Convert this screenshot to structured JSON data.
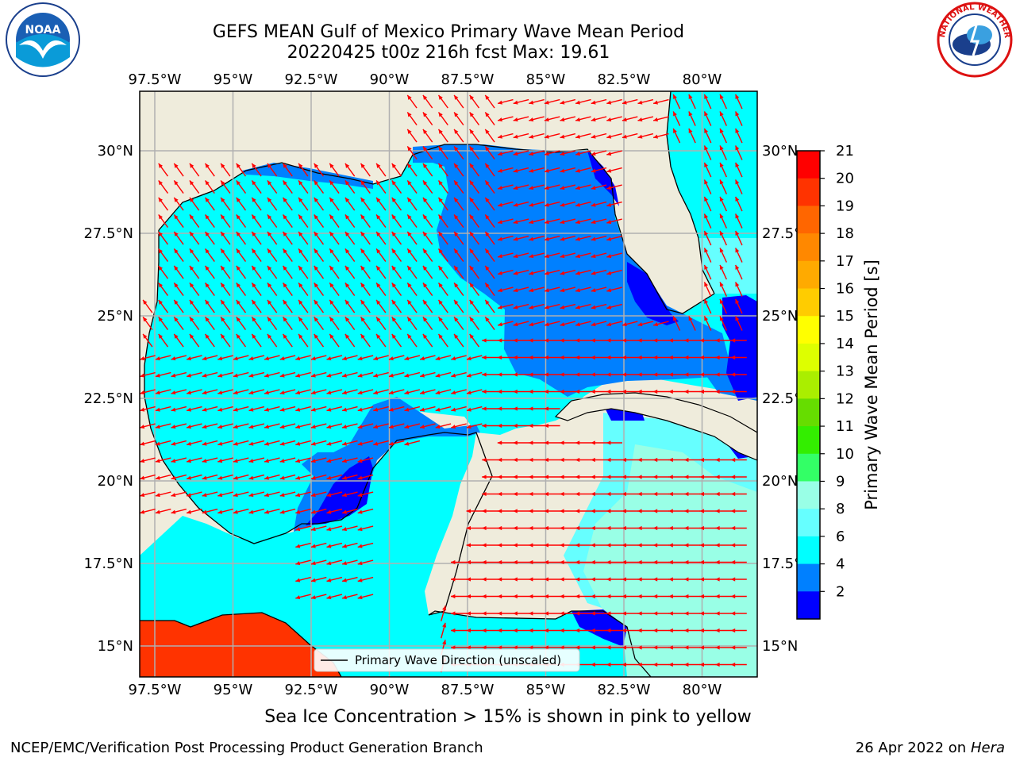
{
  "title_line1": "GEFS MEAN Gulf of Mexico Primary Wave Mean Period",
  "title_line2": "20220425 t00z 216h fcst   Max: 19.61",
  "longitude_ticks": [
    "97.5°W",
    "95°W",
    "92.5°W",
    "90°W",
    "87.5°W",
    "85°W",
    "82.5°W",
    "80°W"
  ],
  "latitude_ticks": [
    "30°N",
    "27.5°N",
    "25°N",
    "22.5°N",
    "20°N",
    "17.5°N",
    "15°N"
  ],
  "legend_label": "Primary Wave Direction (unscaled)",
  "colorbar": {
    "label": "Primary Wave Mean Period [s]",
    "ticks": [
      "21",
      "20",
      "19",
      "18",
      "17",
      "16",
      "15",
      "14",
      "13",
      "12",
      "11",
      "10",
      "9",
      "8",
      "6",
      "4",
      "2"
    ],
    "colors": [
      "#ff0000",
      "#ff3300",
      "#ff6600",
      "#ff8800",
      "#ffaa00",
      "#ffcc00",
      "#ffff00",
      "#ddff00",
      "#aaee00",
      "#66dd00",
      "#33ee00",
      "#33ff66",
      "#99ffe6",
      "#66ffff",
      "#00ffff",
      "#0080ff",
      "#0000ff"
    ]
  },
  "note": "Sea Ice Concentration > 15% is shown in pink to yellow",
  "footer_left": "NCEP/EMC/Verification Post Processing Product Generation Branch",
  "footer_right_date": "26 Apr 2022 on",
  "footer_right_host": "Hera",
  "logos": {
    "noaa_text": "NOAA",
    "nws_ring_text": "NATIONAL WEATHER SERVICE"
  },
  "colors": {
    "land": "#efecdc",
    "wave_4_6": "#0080ff",
    "wave_6_8": "#00ffff",
    "wave_8_9": "#66ffff",
    "wave_9_10": "#99ffe6",
    "wave_2_4": "#0000ff",
    "wave_19_20": "#ff3300",
    "arrow": "#ff0000",
    "grid": "#b0b0b0"
  }
}
